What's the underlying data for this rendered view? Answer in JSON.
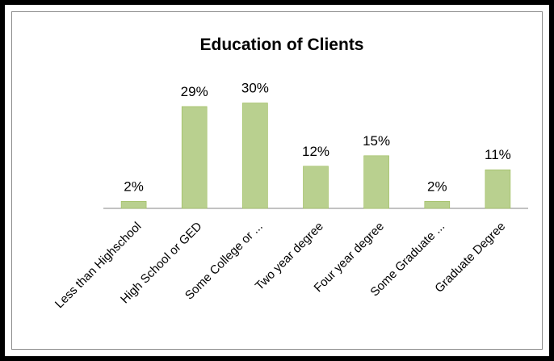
{
  "chart_data": {
    "type": "bar",
    "title": "Education of Clients",
    "categories": [
      "Less than Highschool",
      "High School or GED",
      "Some College or ...",
      "Two year degree",
      "Four year degree",
      "Some Graduate ...",
      "Graduate Degree"
    ],
    "values": [
      2,
      29,
      30,
      12,
      15,
      2,
      11
    ],
    "data_labels": [
      "2%",
      "29%",
      "30%",
      "12%",
      "15%",
      "2%",
      "11%"
    ],
    "value_unit": "%",
    "xlabel": "",
    "ylabel": "",
    "ylim": [
      0,
      30
    ],
    "grid": false,
    "legend": "none",
    "bar_color": "#b9d08f",
    "bar_edge_color": "#9bbb59"
  }
}
